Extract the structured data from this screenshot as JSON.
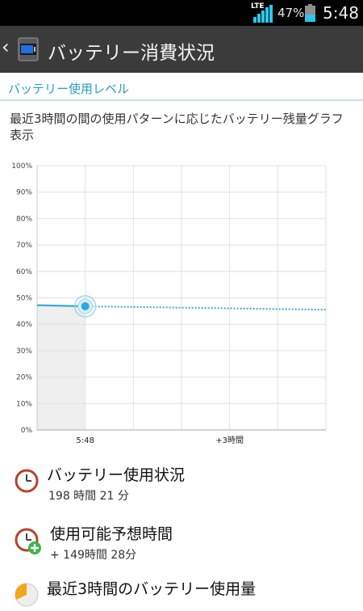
{
  "status_bar": {
    "network": "LTE",
    "battery_percent": "47%",
    "battery_level": 0.47,
    "time": "5:48",
    "accent_color": "#2bc7e8"
  },
  "action_bar": {
    "back_icon": "chevron-left-icon",
    "app_icon": "battery-app-icon",
    "title": "バッテリー消費状況"
  },
  "section": {
    "title": "バッテリー使用レベル",
    "description": "最近3時間の間の使用パターンに応じたバッテリー残量グラフ表示"
  },
  "chart_data": {
    "type": "line",
    "title": "",
    "xlabel": "",
    "ylabel": "",
    "y_ticks": [
      "0%",
      "10%",
      "20%",
      "30%",
      "40%",
      "50%",
      "60%",
      "70%",
      "80%",
      "90%",
      "100%"
    ],
    "x_labels": [
      "5:48",
      "+3時間"
    ],
    "ylim": [
      0,
      100
    ],
    "grid": true,
    "series": [
      {
        "kind": "history",
        "style": "solid",
        "points": [
          {
            "t": -1,
            "v": 47.2
          },
          {
            "t": 0,
            "v": 46.8
          }
        ]
      },
      {
        "kind": "forecast",
        "style": "dotted",
        "points": [
          {
            "t": 0,
            "v": 46.8
          },
          {
            "t": 5,
            "v": 45.5
          }
        ]
      }
    ],
    "current_point": {
      "t": 0,
      "v": 46.8
    },
    "line_color": "#39a9d3"
  },
  "items": [
    {
      "title": "バッテリー使用状況",
      "subtitle": "198 時間 21 分",
      "icon": "clock-icon"
    },
    {
      "title": "使用可能予想時間",
      "subtitle": "+ 149時間 28分",
      "icon": "clock-plus-icon"
    },
    {
      "title": "最近3時間のバッテリー使用量",
      "subtitle": "",
      "icon": "pie-chart-icon"
    }
  ]
}
